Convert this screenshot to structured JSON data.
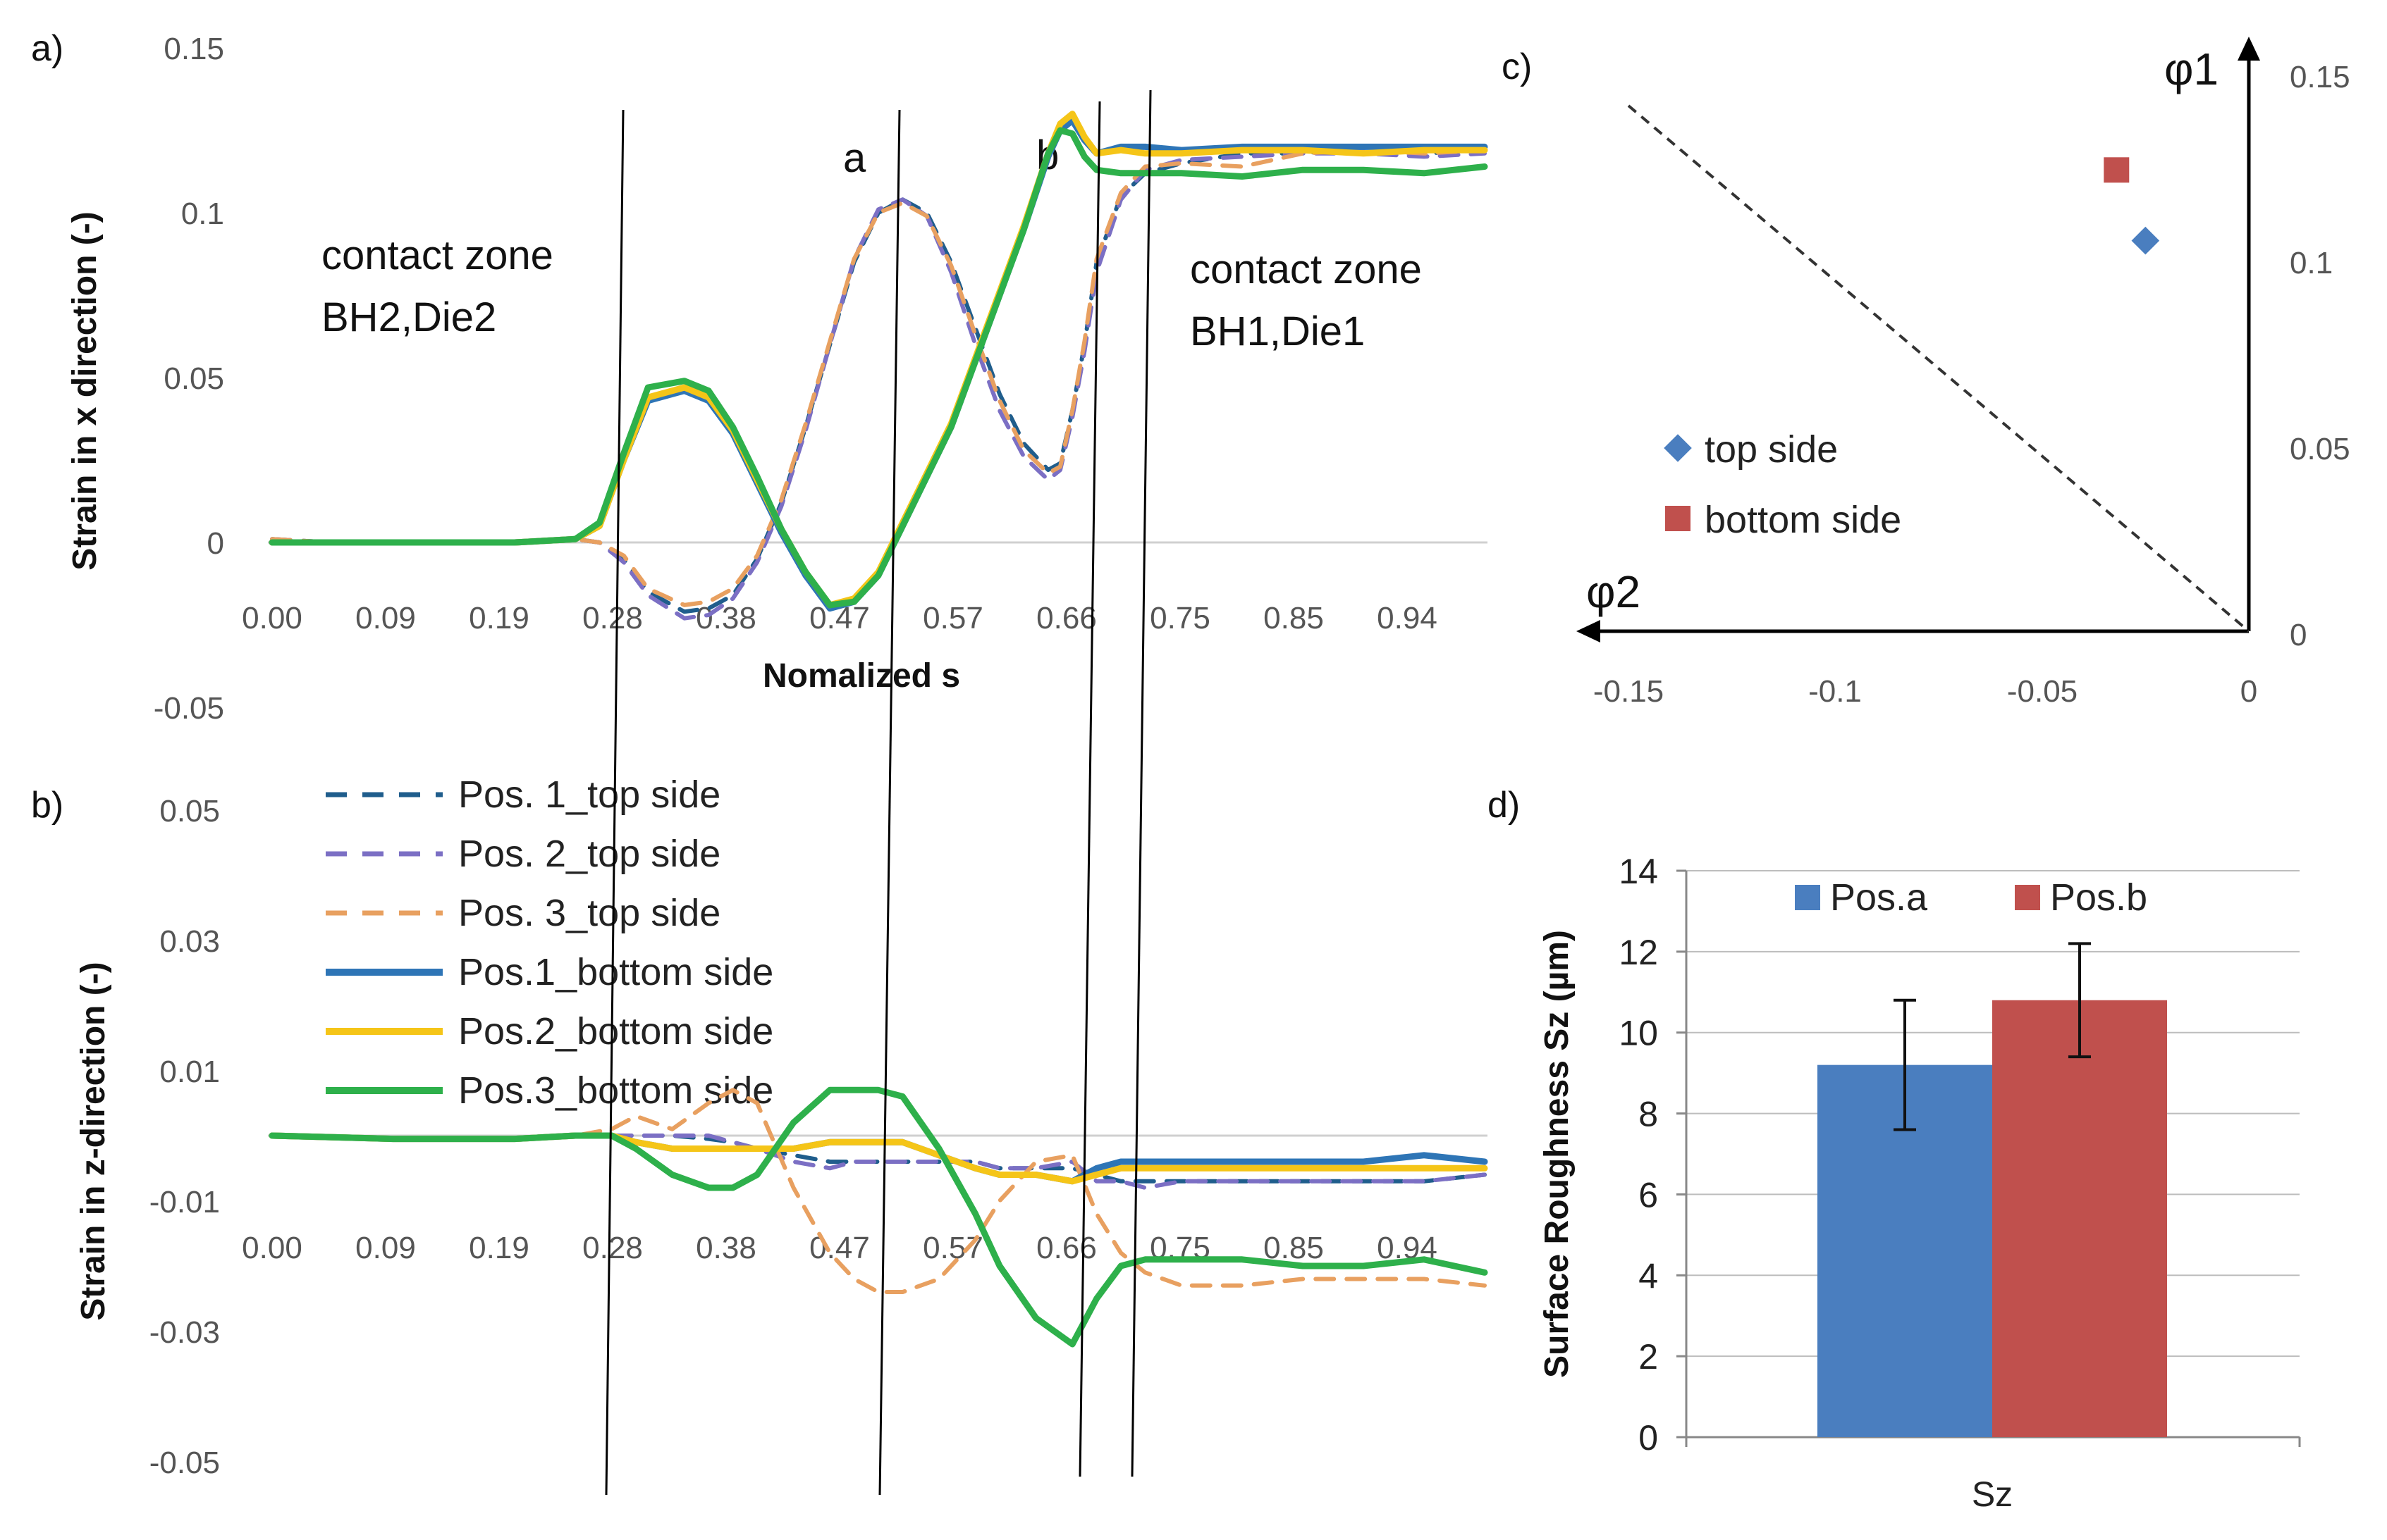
{
  "chart_data": [
    {
      "id": "a",
      "panel_label": "a)",
      "type": "line",
      "ylabel": "Strain in x direction (-)",
      "xlabel": "Nomalized s",
      "ylim": [
        -0.05,
        0.15
      ],
      "ytick_labels": [
        "0.15",
        "0.1",
        "0.05",
        "0",
        "-0.05"
      ],
      "xtick_labels": [
        "0.00",
        "0.09",
        "0.19",
        "0.28",
        "0.38",
        "0.47",
        "0.57",
        "0.66",
        "0.75",
        "0.85",
        "0.94"
      ],
      "annotations": {
        "zone_left_1": "contact zone",
        "zone_left_2": "BH2,Die2",
        "zone_right_1": "contact zone",
        "zone_right_2": "BH1,Die1",
        "line_a": "a",
        "line_b": "b"
      },
      "x": [
        0.0,
        0.05,
        0.1,
        0.15,
        0.2,
        0.25,
        0.27,
        0.29,
        0.31,
        0.34,
        0.36,
        0.38,
        0.4,
        0.42,
        0.44,
        0.46,
        0.48,
        0.5,
        0.52,
        0.54,
        0.56,
        0.58,
        0.6,
        0.62,
        0.64,
        0.65,
        0.66,
        0.67,
        0.68,
        0.7,
        0.72,
        0.75,
        0.8,
        0.85,
        0.9,
        0.95,
        1.0
      ],
      "series": [
        {
          "name": "Pos. 1_top side",
          "color": "#1f5d8c",
          "dash": true,
          "values": [
            0.001,
            0.0,
            0.0,
            0.0,
            0.0,
            0.001,
            0.0,
            -0.005,
            -0.015,
            -0.021,
            -0.02,
            -0.016,
            -0.005,
            0.012,
            0.035,
            0.06,
            0.085,
            0.1,
            0.104,
            0.1,
            0.085,
            0.065,
            0.045,
            0.03,
            0.022,
            0.024,
            0.04,
            0.06,
            0.085,
            0.105,
            0.112,
            0.115,
            0.118,
            0.118,
            0.12,
            0.118,
            0.119
          ]
        },
        {
          "name": "Pos. 2_top side",
          "color": "#7b6fc4",
          "dash": true,
          "values": [
            0.001,
            0.0,
            0.0,
            0.0,
            0.0,
            0.001,
            0.0,
            -0.006,
            -0.016,
            -0.023,
            -0.022,
            -0.017,
            -0.006,
            0.011,
            0.034,
            0.06,
            0.086,
            0.101,
            0.104,
            0.099,
            0.082,
            0.06,
            0.04,
            0.026,
            0.019,
            0.022,
            0.038,
            0.058,
            0.082,
            0.104,
            0.113,
            0.116,
            0.117,
            0.118,
            0.118,
            0.117,
            0.118
          ]
        },
        {
          "name": "Pos. 3_top side",
          "color": "#e8a060",
          "dash": true,
          "values": [
            0.001,
            0.0,
            0.0,
            0.0,
            0.0,
            0.001,
            0.0,
            -0.004,
            -0.014,
            -0.019,
            -0.018,
            -0.014,
            -0.004,
            0.013,
            0.036,
            0.061,
            0.086,
            0.1,
            0.103,
            0.099,
            0.084,
            0.063,
            0.043,
            0.028,
            0.021,
            0.023,
            0.04,
            0.061,
            0.086,
            0.106,
            0.114,
            0.115,
            0.114,
            0.118,
            0.119,
            0.118,
            0.119
          ]
        },
        {
          "name": "Pos.1_bottom side",
          "color": "#2e75b6",
          "dash": false,
          "values": [
            0.0,
            0.0,
            0.0,
            0.0,
            0.0,
            0.001,
            0.005,
            0.025,
            0.043,
            0.046,
            0.043,
            0.033,
            0.018,
            0.003,
            -0.01,
            -0.02,
            -0.018,
            -0.01,
            0.005,
            0.02,
            0.035,
            0.055,
            0.075,
            0.095,
            0.117,
            0.125,
            0.128,
            0.122,
            0.118,
            0.12,
            0.12,
            0.119,
            0.12,
            0.12,
            0.12,
            0.12,
            0.12
          ]
        },
        {
          "name": "Pos.2_bottom side",
          "color": "#f5c518",
          "dash": false,
          "values": [
            0.0,
            0.0,
            0.0,
            0.0,
            0.0,
            0.001,
            0.005,
            0.025,
            0.044,
            0.047,
            0.044,
            0.034,
            0.019,
            0.004,
            -0.009,
            -0.019,
            -0.017,
            -0.009,
            0.006,
            0.021,
            0.036,
            0.056,
            0.076,
            0.096,
            0.118,
            0.127,
            0.13,
            0.123,
            0.118,
            0.119,
            0.118,
            0.118,
            0.119,
            0.119,
            0.118,
            0.119,
            0.119
          ]
        },
        {
          "name": "Pos.3_bottom side",
          "color": "#2eb04b",
          "dash": false,
          "values": [
            0.0,
            0.0,
            0.0,
            0.0,
            0.0,
            0.001,
            0.006,
            0.027,
            0.047,
            0.049,
            0.046,
            0.035,
            0.02,
            0.004,
            -0.009,
            -0.019,
            -0.018,
            -0.01,
            0.005,
            0.02,
            0.035,
            0.055,
            0.075,
            0.095,
            0.118,
            0.125,
            0.124,
            0.117,
            0.113,
            0.112,
            0.112,
            0.112,
            0.111,
            0.113,
            0.113,
            0.112,
            0.114
          ]
        }
      ]
    },
    {
      "id": "b",
      "panel_label": "b)",
      "type": "line",
      "ylabel": "Strain in z-direction (-)",
      "ylim": [
        -0.05,
        0.05
      ],
      "ytick_labels": [
        "0.05",
        "0.03",
        "0.01",
        "-0.01",
        "-0.03",
        "-0.05"
      ],
      "xtick_labels": [
        "0.00",
        "0.09",
        "0.19",
        "0.28",
        "0.38",
        "0.47",
        "0.57",
        "0.66",
        "0.75",
        "0.85",
        "0.94"
      ],
      "x": [
        0.0,
        0.1,
        0.2,
        0.25,
        0.28,
        0.3,
        0.33,
        0.36,
        0.38,
        0.4,
        0.43,
        0.46,
        0.48,
        0.5,
        0.52,
        0.55,
        0.58,
        0.6,
        0.63,
        0.66,
        0.68,
        0.7,
        0.72,
        0.75,
        0.8,
        0.85,
        0.9,
        0.95,
        1.0
      ],
      "series": [
        {
          "name": "Pos. 1_top side",
          "color": "#1f5d8c",
          "dash": true,
          "values": [
            0.0,
            -0.0005,
            -0.0005,
            0.0,
            0.0,
            0.0,
            0.0,
            -0.0005,
            -0.001,
            -0.002,
            -0.003,
            -0.004,
            -0.004,
            -0.004,
            -0.004,
            -0.004,
            -0.004,
            -0.005,
            -0.005,
            -0.005,
            -0.006,
            -0.007,
            -0.007,
            -0.007,
            -0.007,
            -0.007,
            -0.007,
            -0.007,
            -0.006
          ]
        },
        {
          "name": "Pos. 2_top side",
          "color": "#7b6fc4",
          "dash": true,
          "values": [
            0.0,
            -0.0005,
            -0.0005,
            0.0,
            0.0,
            0.0,
            0.0,
            0.0,
            -0.001,
            -0.002,
            -0.004,
            -0.005,
            -0.004,
            -0.004,
            -0.004,
            -0.004,
            -0.004,
            -0.005,
            -0.005,
            -0.004,
            -0.007,
            -0.007,
            -0.008,
            -0.007,
            -0.007,
            -0.007,
            -0.007,
            -0.007,
            -0.006
          ]
        },
        {
          "name": "Pos. 3_top side",
          "color": "#e8a060",
          "dash": true,
          "values": [
            0.0,
            -0.0005,
            -0.0005,
            0.0,
            0.001,
            0.003,
            0.001,
            0.005,
            0.007,
            0.005,
            -0.008,
            -0.018,
            -0.022,
            -0.024,
            -0.024,
            -0.022,
            -0.016,
            -0.01,
            -0.004,
            -0.003,
            -0.012,
            -0.018,
            -0.021,
            -0.023,
            -0.023,
            -0.022,
            -0.022,
            -0.022,
            -0.023
          ]
        },
        {
          "name": "Pos.1_bottom side",
          "color": "#2e75b6",
          "dash": false,
          "values": [
            0.0,
            -0.0005,
            -0.0005,
            0.0,
            0.0,
            -0.001,
            -0.002,
            -0.002,
            -0.002,
            -0.002,
            -0.002,
            -0.001,
            -0.001,
            -0.001,
            -0.001,
            -0.003,
            -0.005,
            -0.006,
            -0.006,
            -0.007,
            -0.005,
            -0.004,
            -0.004,
            -0.004,
            -0.004,
            -0.004,
            -0.004,
            -0.003,
            -0.004
          ]
        },
        {
          "name": "Pos.2_bottom side",
          "color": "#f5c518",
          "dash": false,
          "values": [
            0.0,
            -0.0005,
            -0.0005,
            0.0,
            0.0,
            -0.001,
            -0.002,
            -0.002,
            -0.002,
            -0.002,
            -0.002,
            -0.001,
            -0.001,
            -0.001,
            -0.001,
            -0.003,
            -0.005,
            -0.006,
            -0.006,
            -0.007,
            -0.006,
            -0.005,
            -0.005,
            -0.005,
            -0.005,
            -0.005,
            -0.005,
            -0.005,
            -0.005
          ]
        },
        {
          "name": "Pos.3_bottom side",
          "color": "#2eb04b",
          "dash": false,
          "values": [
            0.0,
            -0.0005,
            -0.0005,
            0.0,
            0.0,
            -0.002,
            -0.006,
            -0.008,
            -0.008,
            -0.006,
            0.002,
            0.007,
            0.007,
            0.007,
            0.006,
            -0.002,
            -0.012,
            -0.02,
            -0.028,
            -0.032,
            -0.025,
            -0.02,
            -0.019,
            -0.019,
            -0.019,
            -0.02,
            -0.02,
            -0.019,
            -0.021
          ]
        }
      ]
    },
    {
      "id": "c",
      "panel_label": "c)",
      "type": "scatter",
      "xlabel": "φ2",
      "ylabel": "φ1",
      "xlim": [
        -0.15,
        0
      ],
      "ylim": [
        0,
        0.15
      ],
      "xtick_labels": [
        "-0.15",
        "-0.1",
        "-0.05",
        "0"
      ],
      "ytick_labels": [
        "0.15",
        "0.1",
        "0.05",
        "0"
      ],
      "dashed_line": {
        "from": [
          -0.15,
          0.15
        ],
        "to": [
          0,
          0
        ]
      },
      "series": [
        {
          "name": "top side",
          "color": "#4a7ebf",
          "marker": "diamond",
          "x": [
            -0.025
          ],
          "y": [
            0.105
          ]
        },
        {
          "name": "bottom side",
          "color": "#c0504d",
          "marker": "square",
          "x": [
            -0.032
          ],
          "y": [
            0.124
          ]
        }
      ]
    },
    {
      "id": "d",
      "panel_label": "d)",
      "type": "bar",
      "ylabel": "Surface Roughness Sz (µm)",
      "ylim": [
        0,
        14
      ],
      "ytick_labels": [
        "14",
        "12",
        "10",
        "8",
        "6",
        "4",
        "2",
        "0"
      ],
      "categories": [
        "Sz"
      ],
      "series": [
        {
          "name": "Pos.a",
          "color": "#4a7ebf",
          "values": [
            9.2
          ],
          "error": [
            1.6
          ]
        },
        {
          "name": "Pos.b",
          "color": "#c0504d",
          "values": [
            10.8
          ],
          "error": [
            1.4
          ]
        }
      ]
    }
  ]
}
